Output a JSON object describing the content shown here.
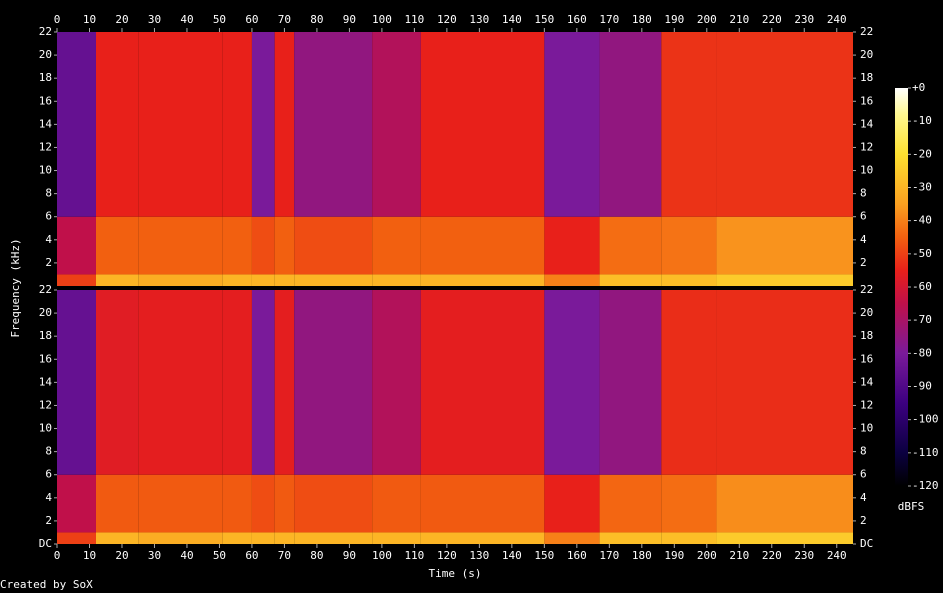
{
  "chart_data": {
    "type": "spectrogram",
    "x_label": "Time (s)",
    "y_label": "Frequency (kHz)",
    "credit": "Created by SoX",
    "xlim": [
      0,
      245
    ],
    "xticks": [
      0,
      10,
      20,
      30,
      40,
      50,
      60,
      70,
      80,
      90,
      100,
      110,
      120,
      130,
      140,
      150,
      160,
      170,
      180,
      190,
      200,
      210,
      220,
      230,
      240
    ],
    "ylim": [
      0,
      22
    ],
    "time_bins": [
      0,
      12,
      25,
      51,
      60,
      67,
      73,
      97,
      112,
      150,
      167,
      186,
      203,
      245
    ],
    "freq_bins": [
      0,
      1,
      6,
      22
    ],
    "channels": [
      {
        "yticks": [
          2,
          4,
          6,
          8,
          10,
          12,
          14,
          16,
          18,
          20,
          22
        ],
        "values": [
          [
            -50,
            -65,
            -85
          ],
          [
            -30,
            -45,
            -55
          ],
          [
            -32,
            -45,
            -55
          ],
          [
            -30,
            -45,
            -55
          ],
          [
            -30,
            -48,
            -80
          ],
          [
            -30,
            -45,
            -55
          ],
          [
            -30,
            -48,
            -75
          ],
          [
            -30,
            -45,
            -68
          ],
          [
            -30,
            -45,
            -55
          ],
          [
            -40,
            -55,
            -80
          ],
          [
            -28,
            -43,
            -75
          ],
          [
            -28,
            -42,
            -52
          ],
          [
            -25,
            -37,
            -52
          ]
        ]
      },
      {
        "yticks": [
          {
            "value": 0,
            "label": "DC"
          },
          2,
          4,
          6,
          8,
          10,
          12,
          14,
          16,
          18,
          20,
          22
        ],
        "values": [
          [
            -50,
            -65,
            -85
          ],
          [
            -30,
            -46,
            -57
          ],
          [
            -32,
            -46,
            -56
          ],
          [
            -30,
            -46,
            -56
          ],
          [
            -30,
            -48,
            -80
          ],
          [
            -30,
            -46,
            -56
          ],
          [
            -30,
            -48,
            -75
          ],
          [
            -30,
            -46,
            -68
          ],
          [
            -30,
            -46,
            -56
          ],
          [
            -40,
            -55,
            -80
          ],
          [
            -28,
            -44,
            -75
          ],
          [
            -28,
            -43,
            -53
          ],
          [
            -25,
            -38,
            -53
          ]
        ]
      }
    ],
    "colorbar": {
      "label": "dBFS",
      "lim": [
        -120,
        0
      ],
      "ticks": [
        {
          "value": 0,
          "label": "+0"
        },
        -10,
        -20,
        -30,
        -40,
        -50,
        -60,
        -70,
        -80,
        -90,
        -100,
        -110,
        -120
      ]
    },
    "colormap": [
      {
        "value": -120,
        "color": "#000000"
      },
      {
        "value": -110,
        "color": "#0b0040"
      },
      {
        "value": -95,
        "color": "#3c0080"
      },
      {
        "value": -80,
        "color": "#7a1a9a"
      },
      {
        "value": -65,
        "color": "#c0104a"
      },
      {
        "value": -55,
        "color": "#e8201a"
      },
      {
        "value": -45,
        "color": "#f26010"
      },
      {
        "value": -35,
        "color": "#fba020"
      },
      {
        "value": -20,
        "color": "#fde030"
      },
      {
        "value": -8,
        "color": "#fff890"
      },
      {
        "value": 0,
        "color": "#ffffff"
      }
    ]
  }
}
